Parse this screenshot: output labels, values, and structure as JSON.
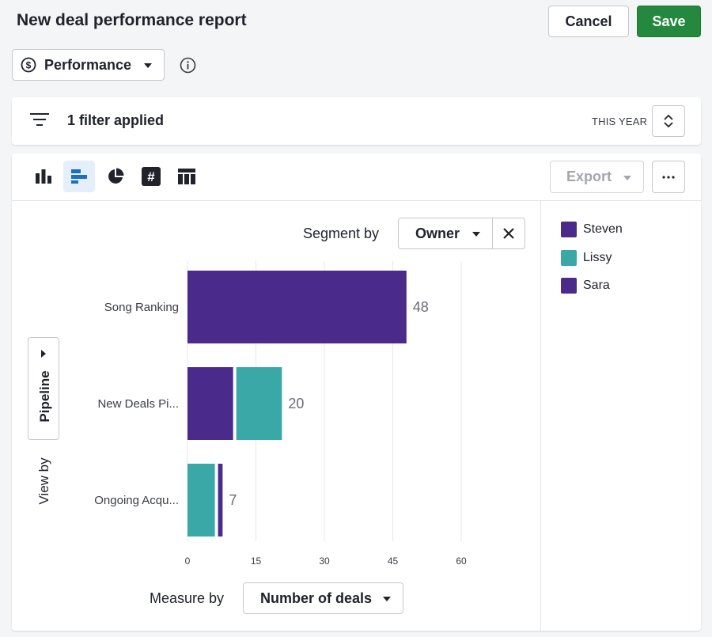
{
  "header": {
    "title": "New deal performance report",
    "cancel_label": "Cancel",
    "save_label": "Save"
  },
  "report_type": {
    "label": "Performance",
    "icon": "dollar-circle-icon"
  },
  "filter_bar": {
    "text": "1 filter applied",
    "period": "THIS YEAR"
  },
  "toolbar": {
    "visualizations": [
      {
        "name": "column-chart-icon",
        "active": false
      },
      {
        "name": "bar-chart-icon",
        "active": true
      },
      {
        "name": "pie-chart-icon",
        "active": false
      },
      {
        "name": "number-icon",
        "active": false
      },
      {
        "name": "table-icon",
        "active": false
      }
    ],
    "export_label": "Export"
  },
  "segment": {
    "label": "Segment by",
    "value": "Owner"
  },
  "view_by": {
    "label": "View by",
    "value": "Pipeline"
  },
  "measure": {
    "label": "Measure by",
    "value": "Number of deals"
  },
  "colors": {
    "steven": "#4a2a8a",
    "lissy": "#3aa8a6",
    "sara": "#4a2a8a",
    "save": "#25883f",
    "active_tab": "#1a6fc2"
  },
  "chart_data": {
    "type": "bar",
    "orientation": "horizontal",
    "stacked": false,
    "categories": [
      "Song Ranking",
      "New Deals Pi...",
      "Ongoing Acqu..."
    ],
    "series": [
      {
        "name": "Steven",
        "values": [
          48,
          10,
          0
        ]
      },
      {
        "name": "Lissy",
        "values": [
          0,
          10,
          6
        ]
      },
      {
        "name": "Sara",
        "values": [
          0,
          0,
          1
        ]
      }
    ],
    "totals": [
      48,
      20,
      7
    ],
    "xlim": [
      0,
      60
    ],
    "xticks": [
      0,
      15,
      30,
      45,
      60
    ],
    "grid": true,
    "legend": "right"
  }
}
